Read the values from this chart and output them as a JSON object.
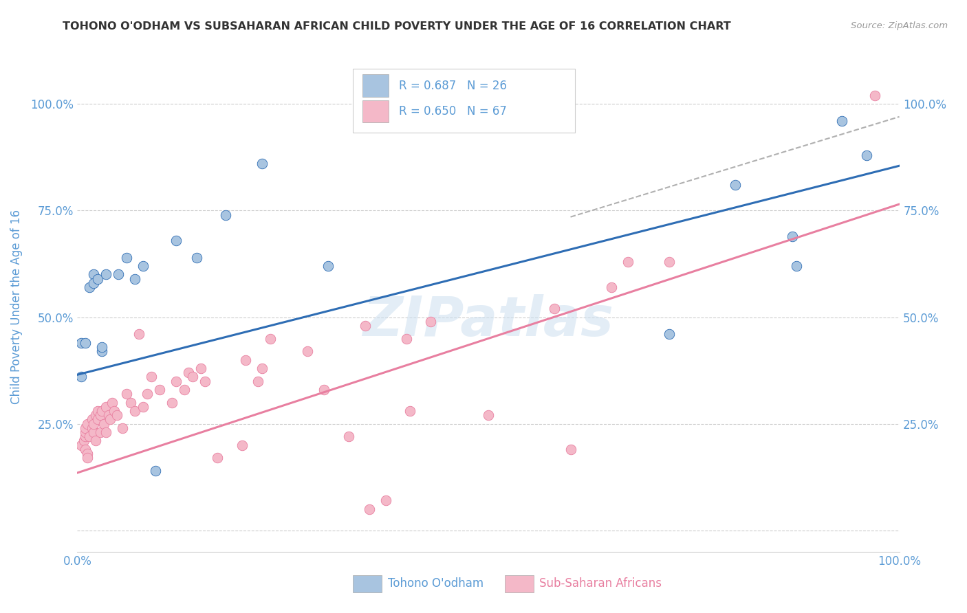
{
  "title": "TOHONO O'ODHAM VS SUBSAHARAN AFRICAN CHILD POVERTY UNDER THE AGE OF 16 CORRELATION CHART",
  "source": "Source: ZipAtlas.com",
  "ylabel": "Child Poverty Under the Age of 16",
  "ytick_labels": [
    "",
    "25.0%",
    "50.0%",
    "75.0%",
    "100.0%"
  ],
  "ytick_positions": [
    0,
    0.25,
    0.5,
    0.75,
    1.0
  ],
  "xlim": [
    0,
    1.0
  ],
  "ylim": [
    -0.05,
    1.1
  ],
  "blue_label": "Tohono O'odham",
  "pink_label": "Sub-Saharan Africans",
  "blue_R": "R = 0.687",
  "blue_N": "N = 26",
  "pink_R": "R = 0.650",
  "pink_N": "N = 67",
  "blue_color": "#a8c4e0",
  "pink_color": "#f4b8c8",
  "blue_line_color": "#2e6db4",
  "pink_line_color": "#e87fa0",
  "watermark": "ZIPatlas",
  "blue_points": [
    [
      0.005,
      0.44
    ],
    [
      0.01,
      0.44
    ],
    [
      0.015,
      0.57
    ],
    [
      0.02,
      0.6
    ],
    [
      0.02,
      0.58
    ],
    [
      0.025,
      0.59
    ],
    [
      0.03,
      0.42
    ],
    [
      0.03,
      0.43
    ],
    [
      0.035,
      0.6
    ],
    [
      0.05,
      0.6
    ],
    [
      0.06,
      0.64
    ],
    [
      0.07,
      0.59
    ],
    [
      0.08,
      0.62
    ],
    [
      0.095,
      0.14
    ],
    [
      0.12,
      0.68
    ],
    [
      0.145,
      0.64
    ],
    [
      0.18,
      0.74
    ],
    [
      0.225,
      0.86
    ],
    [
      0.305,
      0.62
    ],
    [
      0.72,
      0.46
    ],
    [
      0.8,
      0.81
    ],
    [
      0.87,
      0.69
    ],
    [
      0.875,
      0.62
    ],
    [
      0.93,
      0.96
    ],
    [
      0.96,
      0.88
    ],
    [
      0.005,
      0.36
    ]
  ],
  "pink_points": [
    [
      0.005,
      0.2
    ],
    [
      0.008,
      0.21
    ],
    [
      0.01,
      0.22
    ],
    [
      0.01,
      0.23
    ],
    [
      0.01,
      0.24
    ],
    [
      0.01,
      0.19
    ],
    [
      0.012,
      0.18
    ],
    [
      0.012,
      0.17
    ],
    [
      0.012,
      0.25
    ],
    [
      0.015,
      0.22
    ],
    [
      0.018,
      0.26
    ],
    [
      0.018,
      0.24
    ],
    [
      0.02,
      0.23
    ],
    [
      0.02,
      0.25
    ],
    [
      0.022,
      0.21
    ],
    [
      0.022,
      0.27
    ],
    [
      0.025,
      0.28
    ],
    [
      0.025,
      0.26
    ],
    [
      0.028,
      0.27
    ],
    [
      0.028,
      0.23
    ],
    [
      0.03,
      0.28
    ],
    [
      0.032,
      0.25
    ],
    [
      0.035,
      0.29
    ],
    [
      0.035,
      0.23
    ],
    [
      0.038,
      0.27
    ],
    [
      0.04,
      0.26
    ],
    [
      0.042,
      0.3
    ],
    [
      0.045,
      0.28
    ],
    [
      0.048,
      0.27
    ],
    [
      0.055,
      0.24
    ],
    [
      0.06,
      0.32
    ],
    [
      0.065,
      0.3
    ],
    [
      0.07,
      0.28
    ],
    [
      0.075,
      0.46
    ],
    [
      0.08,
      0.29
    ],
    [
      0.085,
      0.32
    ],
    [
      0.09,
      0.36
    ],
    [
      0.1,
      0.33
    ],
    [
      0.115,
      0.3
    ],
    [
      0.12,
      0.35
    ],
    [
      0.13,
      0.33
    ],
    [
      0.135,
      0.37
    ],
    [
      0.14,
      0.36
    ],
    [
      0.15,
      0.38
    ],
    [
      0.155,
      0.35
    ],
    [
      0.17,
      0.17
    ],
    [
      0.2,
      0.2
    ],
    [
      0.205,
      0.4
    ],
    [
      0.22,
      0.35
    ],
    [
      0.225,
      0.38
    ],
    [
      0.235,
      0.45
    ],
    [
      0.28,
      0.42
    ],
    [
      0.3,
      0.33
    ],
    [
      0.33,
      0.22
    ],
    [
      0.35,
      0.48
    ],
    [
      0.355,
      0.05
    ],
    [
      0.375,
      0.07
    ],
    [
      0.4,
      0.45
    ],
    [
      0.405,
      0.28
    ],
    [
      0.43,
      0.49
    ],
    [
      0.5,
      0.27
    ],
    [
      0.58,
      0.52
    ],
    [
      0.6,
      0.19
    ],
    [
      0.65,
      0.57
    ],
    [
      0.67,
      0.63
    ],
    [
      0.72,
      0.63
    ],
    [
      0.97,
      1.02
    ]
  ],
  "blue_line": [
    0.0,
    1.0,
    0.365,
    0.855
  ],
  "pink_line": [
    0.0,
    1.0,
    0.135,
    0.765
  ],
  "dash_line": [
    0.6,
    1.0,
    0.735,
    0.97
  ],
  "background_color": "#ffffff",
  "grid_color": "#cccccc",
  "title_color": "#333333",
  "axis_label_color": "#5b9bd5",
  "tick_label_color": "#5b9bd5",
  "legend_R_N_color": "#5b9bd5",
  "right_ytick_labels": [
    "100.0%",
    "75.0%",
    "50.0%",
    "25.0%"
  ],
  "right_ytick_positions": [
    1.0,
    0.75,
    0.5,
    0.25
  ]
}
